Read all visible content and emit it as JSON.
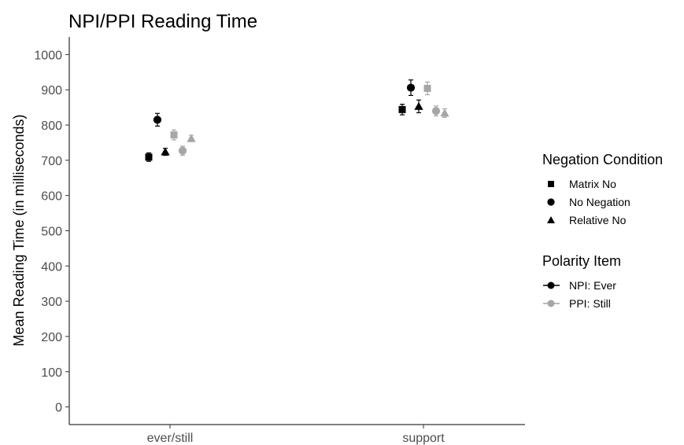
{
  "chart_data": {
    "type": "scatter",
    "title": "NPI/PPI Reading Time",
    "xlabel": "",
    "ylabel": "Mean Reading Time (in milliseconds)",
    "categories": [
      "ever/still",
      "support"
    ],
    "ylim": [
      -50,
      1050
    ],
    "yticks": [
      0,
      100,
      200,
      300,
      400,
      500,
      600,
      700,
      800,
      900,
      1000
    ],
    "grid": false,
    "legend_position": "right",
    "shape_legend": {
      "title": "Negation Condition",
      "items": [
        {
          "label": "Matrix No",
          "shape": "square"
        },
        {
          "label": "No Negation",
          "shape": "circle"
        },
        {
          "label": "Relative No",
          "shape": "triangle"
        }
      ]
    },
    "color_legend": {
      "title": "Polarity Item",
      "items": [
        {
          "label": "NPI: Ever",
          "color": "#000000"
        },
        {
          "label": "PPI: Still",
          "color": "#a6a6a6"
        }
      ]
    },
    "series": [
      {
        "name": "NPI: Ever",
        "negation": "Matrix No",
        "color": "#000000",
        "shape": "square",
        "values": [
          709,
          844
        ],
        "errors": [
          12,
          15
        ]
      },
      {
        "name": "NPI: Ever",
        "negation": "No Negation",
        "color": "#000000",
        "shape": "circle",
        "values": [
          815,
          906
        ],
        "errors": [
          18,
          22
        ]
      },
      {
        "name": "NPI: Ever",
        "negation": "Relative No",
        "color": "#000000",
        "shape": "triangle",
        "values": [
          724,
          853
        ],
        "errors": [
          10,
          18
        ]
      },
      {
        "name": "PPI: Still",
        "negation": "Matrix No",
        "color": "#a6a6a6",
        "shape": "square",
        "values": [
          772,
          904
        ],
        "errors": [
          14,
          18
        ]
      },
      {
        "name": "PPI: Still",
        "negation": "No Negation",
        "color": "#a6a6a6",
        "shape": "circle",
        "values": [
          727,
          840
        ],
        "errors": [
          13,
          14
        ]
      },
      {
        "name": "PPI: Still",
        "negation": "Relative No",
        "color": "#a6a6a6",
        "shape": "triangle",
        "values": [
          762,
          834
        ],
        "errors": [
          9,
          12
        ]
      }
    ]
  }
}
